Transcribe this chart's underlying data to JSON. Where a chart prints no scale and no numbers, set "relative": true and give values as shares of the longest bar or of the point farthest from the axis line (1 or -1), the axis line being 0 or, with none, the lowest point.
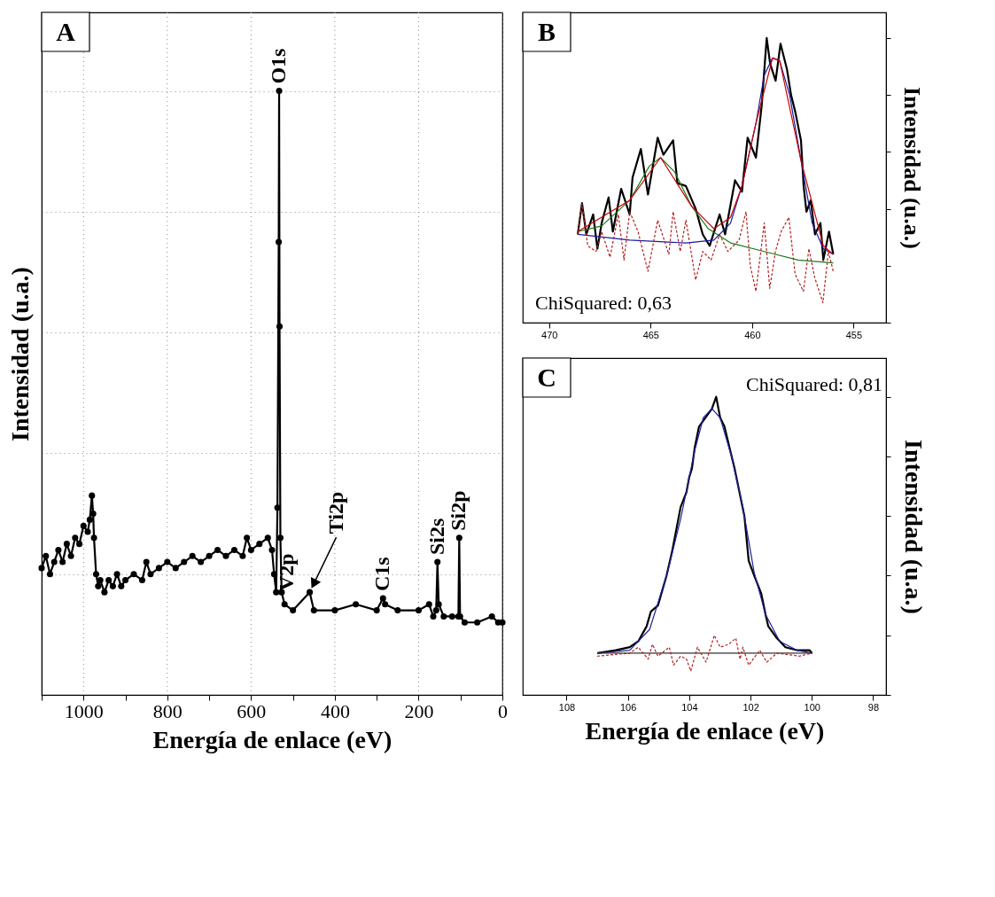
{
  "chart_data": [
    {
      "type": "line",
      "relative": true,
      "xlabel": "Energía de enlace (eV)",
      "ylabel": "Intensidad (u.a.)",
      "xlim": [
        1100,
        0
      ],
      "xticks": [
        {
          "value": 1100,
          "label": null
        },
        1000,
        {
          "value": 900,
          "label": null
        },
        800,
        {
          "value": 700,
          "label": null
        },
        600,
        {
          "value": 500,
          "label": null
        },
        400,
        {
          "value": 300,
          "label": null
        },
        200,
        {
          "value": 100,
          "label": null
        },
        0
      ],
      "grid": true,
      "marker": "circle",
      "tick_labels": "x",
      "series": [
        {
          "color": "#000000",
          "x": [
            1100,
            1090,
            1080,
            1070,
            1060,
            1050,
            1040,
            1030,
            1020,
            1010,
            1000,
            990,
            985,
            980,
            977,
            975,
            970,
            965,
            960,
            950,
            940,
            930,
            920,
            910,
            900,
            880,
            860,
            850,
            840,
            820,
            800,
            780,
            760,
            740,
            720,
            700,
            680,
            660,
            640,
            620,
            610,
            600,
            580,
            560,
            550,
            545,
            540,
            537,
            534,
            533,
            532,
            530,
            527,
            520,
            500,
            460,
            450,
            400,
            350,
            300,
            285,
            280,
            250,
            200,
            175,
            165,
            158,
            155,
            152,
            140,
            120,
            105,
            103,
            101,
            90,
            60,
            25,
            10,
            0
          ],
          "values": [
            0.21,
            0.23,
            0.2,
            0.22,
            0.24,
            0.22,
            0.25,
            0.23,
            0.26,
            0.25,
            0.28,
            0.27,
            0.29,
            0.33,
            0.3,
            0.26,
            0.2,
            0.18,
            0.19,
            0.17,
            0.19,
            0.18,
            0.2,
            0.18,
            0.19,
            0.2,
            0.19,
            0.22,
            0.2,
            0.21,
            0.22,
            0.21,
            0.22,
            0.23,
            0.22,
            0.23,
            0.24,
            0.23,
            0.24,
            0.23,
            0.26,
            0.24,
            0.25,
            0.26,
            0.24,
            0.2,
            0.17,
            0.31,
            0.75,
            1.0,
            0.61,
            0.26,
            0.17,
            0.15,
            0.14,
            0.17,
            0.14,
            0.14,
            0.15,
            0.14,
            0.16,
            0.15,
            0.14,
            0.14,
            0.15,
            0.13,
            0.14,
            0.22,
            0.15,
            0.13,
            0.13,
            0.13,
            0.26,
            0.13,
            0.12,
            0.12,
            0.13,
            0.12,
            0.12
          ]
        }
      ],
      "annotations": [
        "A",
        {
          "text": "O1s",
          "x": 533,
          "y": 1.0
        },
        {
          "text": "V2p",
          "x": 515,
          "y": 0.16
        },
        {
          "text": "Ti2p",
          "x": 460,
          "y": 0.17
        },
        {
          "text": "C1s",
          "x": 285,
          "y": 0.16
        },
        {
          "text": "Si2s",
          "x": 155,
          "y": 0.22
        },
        {
          "text": "Si2p",
          "x": 103,
          "y": 0.26
        }
      ]
    },
    {
      "type": "line",
      "relative": true,
      "ylabel": "Intensidad (u.a.)",
      "xlim": [
        471.3,
        453.4
      ],
      "xticks": [
        470,
        465,
        460,
        455
      ],
      "tick_labels": "x",
      "series": [
        {
          "color": "#000000",
          "x": [
            468.59,
            468.38,
            468.17,
            467.83,
            467.62,
            467.41,
            467.07,
            466.86,
            466.45,
            466.03,
            465.89,
            465.48,
            465.13,
            464.65,
            464.37,
            463.89,
            463.68,
            463.26,
            462.78,
            462.43,
            462.09,
            461.6,
            461.33,
            460.84,
            460.5,
            460.22,
            459.81,
            459.53,
            459.28,
            459.11,
            458.84,
            458.6,
            458.28,
            458.08,
            457.87,
            457.59,
            457.46,
            457.32,
            457.11,
            456.9,
            456.63,
            456.49,
            456.21,
            456.0
          ],
          "values": [
            0.31,
            0.42,
            0.31,
            0.38,
            0.26,
            0.35,
            0.44,
            0.32,
            0.47,
            0.38,
            0.51,
            0.61,
            0.45,
            0.65,
            0.59,
            0.64,
            0.49,
            0.48,
            0.4,
            0.31,
            0.27,
            0.38,
            0.31,
            0.5,
            0.46,
            0.65,
            0.58,
            0.76,
            1.0,
            0.91,
            0.85,
            0.98,
            0.89,
            0.8,
            0.74,
            0.64,
            0.48,
            0.39,
            0.43,
            0.31,
            0.35,
            0.22,
            0.32,
            0.24
          ]
        },
        {
          "color": "#1a7a1a",
          "x": [
            468.59,
            467.41,
            466.03,
            465.06,
            464.51,
            463.82,
            462.99,
            462.16,
            461.06,
            459.4,
            457.73,
            456.0
          ],
          "values": [
            0.32,
            0.34,
            0.43,
            0.55,
            0.58,
            0.53,
            0.41,
            0.33,
            0.28,
            0.25,
            0.22,
            0.21
          ]
        },
        {
          "color": "#1a1aa0",
          "x": [
            468.59,
            466.03,
            463.26,
            461.88,
            461.06,
            460.5,
            459.81,
            459.4,
            458.99,
            458.64,
            458.15,
            457.59,
            457.04,
            456.49,
            456.0
          ],
          "values": [
            0.31,
            0.29,
            0.28,
            0.29,
            0.35,
            0.48,
            0.7,
            0.87,
            0.93,
            0.92,
            0.8,
            0.57,
            0.35,
            0.26,
            0.24
          ]
        },
        {
          "color": "#cc0000",
          "x": [
            468.59,
            466.03,
            464.51,
            462.99,
            461.88,
            461.06,
            460.5,
            459.81,
            458.99,
            458.64,
            457.59,
            456.49,
            456.0
          ],
          "values": [
            0.32,
            0.43,
            0.58,
            0.41,
            0.33,
            0.37,
            0.48,
            0.7,
            0.93,
            0.92,
            0.57,
            0.27,
            0.24
          ]
        },
        {
          "color": "#b22222",
          "line_style": "dashed",
          "x": [
            468.59,
            468.38,
            468.1,
            467.69,
            467.41,
            467.0,
            466.59,
            466.31,
            466.03,
            465.62,
            465.13,
            464.65,
            464.1,
            463.89,
            463.54,
            463.26,
            462.78,
            462.43,
            462.02,
            461.6,
            461.19,
            460.64,
            460.3,
            460.09,
            459.81,
            459.4,
            459.13,
            458.85,
            458.57,
            458.19,
            457.88,
            457.47,
            457.2,
            456.92,
            456.51,
            456.24,
            456.0
          ],
          "values": [
            0.31,
            0.42,
            0.27,
            0.25,
            0.32,
            0.23,
            0.38,
            0.22,
            0.39,
            0.32,
            0.18,
            0.36,
            0.24,
            0.39,
            0.25,
            0.36,
            0.15,
            0.25,
            0.22,
            0.31,
            0.25,
            0.29,
            0.39,
            0.2,
            0.11,
            0.35,
            0.12,
            0.25,
            0.32,
            0.37,
            0.17,
            0.11,
            0.26,
            0.16,
            0.07,
            0.25,
            0.18
          ]
        }
      ],
      "annotations": [
        "B",
        "ChiSquared: 0,63"
      ]
    },
    {
      "type": "line",
      "relative": true,
      "xlabel": "Energía de enlace (eV)",
      "ylabel": "Intensidad (u.a.)",
      "xlim": [
        109.43,
        97.58
      ],
      "xticks": [
        108,
        106,
        104,
        102,
        100,
        98
      ],
      "tick_labels": "x",
      "series": [
        {
          "color": "#000000",
          "x": [
            107.0,
            106.4,
            105.94,
            105.66,
            105.39,
            105.25,
            105.02,
            104.74,
            104.56,
            104.28,
            104.09,
            104.0,
            103.91,
            103.82,
            103.68,
            103.54,
            103.4,
            103.26,
            103.12,
            102.99,
            102.85,
            102.71,
            102.52,
            102.34,
            102.2,
            102.06,
            101.88,
            101.65,
            101.51,
            101.42,
            101.14,
            100.86,
            100.49,
            100.08,
            99.99
          ],
          "values": [
            0.14,
            0.15,
            0.16,
            0.18,
            0.23,
            0.28,
            0.3,
            0.4,
            0.48,
            0.63,
            0.68,
            0.73,
            0.76,
            0.83,
            0.9,
            0.92,
            0.94,
            0.96,
            1.0,
            0.93,
            0.9,
            0.84,
            0.76,
            0.67,
            0.6,
            0.45,
            0.4,
            0.34,
            0.27,
            0.23,
            0.19,
            0.16,
            0.15,
            0.15,
            0.14
          ]
        },
        {
          "color": "#2020a0",
          "x": [
            107.0,
            105.94,
            105.29,
            104.74,
            104.28,
            103.82,
            103.54,
            103.26,
            102.99,
            102.62,
            102.25,
            101.88,
            101.51,
            101.05,
            100.49,
            99.99
          ],
          "values": [
            0.14,
            0.15,
            0.22,
            0.4,
            0.59,
            0.82,
            0.93,
            0.96,
            0.93,
            0.8,
            0.63,
            0.41,
            0.27,
            0.18,
            0.15,
            0.14
          ]
        },
        {
          "color": "#333333",
          "x": [
            107.0,
            99.99
          ],
          "values": [
            0.14,
            0.14
          ]
        },
        {
          "color": "#b22222",
          "line_style": "dashed",
          "x": [
            107.0,
            105.94,
            105.66,
            105.34,
            105.2,
            105.02,
            104.65,
            104.51,
            104.28,
            104.09,
            103.95,
            103.73,
            103.45,
            103.18,
            102.99,
            102.71,
            102.48,
            102.34,
            102.25,
            102.06,
            101.7,
            101.47,
            101.14,
            100.4,
            99.99
          ],
          "values": [
            0.13,
            0.14,
            0.16,
            0.12,
            0.17,
            0.13,
            0.16,
            0.1,
            0.13,
            0.12,
            0.08,
            0.16,
            0.11,
            0.2,
            0.16,
            0.17,
            0.19,
            0.12,
            0.16,
            0.1,
            0.15,
            0.11,
            0.14,
            0.13,
            0.14
          ]
        }
      ],
      "annotations": [
        "C",
        "ChiSquared: 0,81"
      ]
    }
  ]
}
